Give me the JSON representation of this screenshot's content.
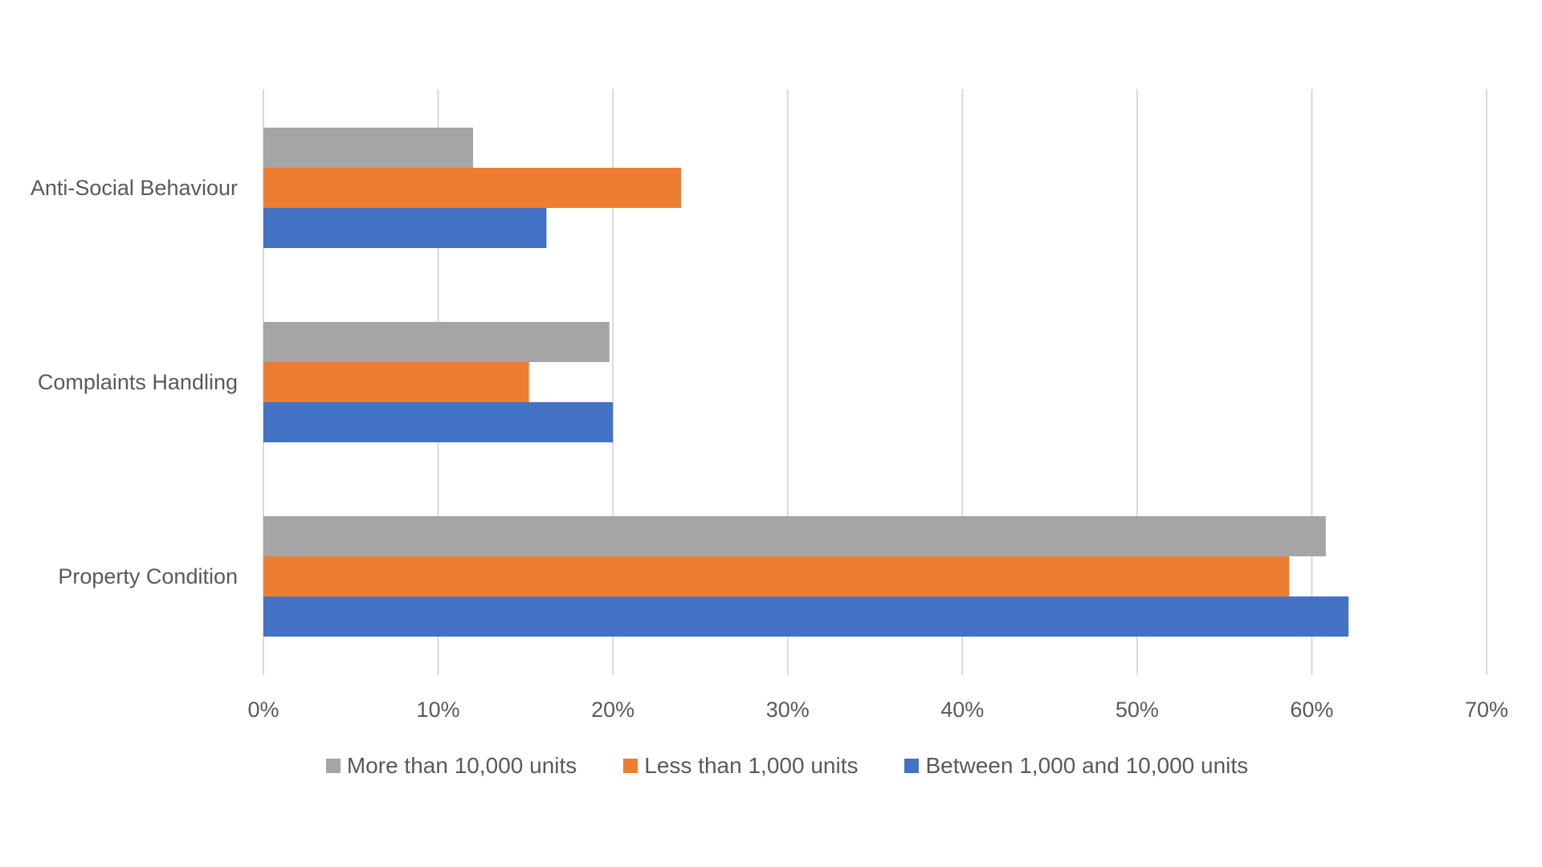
{
  "chart_data": {
    "type": "bar",
    "orientation": "horizontal",
    "title": "",
    "xlabel": "",
    "ylabel": "",
    "categories": [
      "Anti-Social Behaviour",
      "Complaints Handling",
      "Property Condition"
    ],
    "series": [
      {
        "name": "More than 10,000 units",
        "color": "#A5A5A5",
        "values": [
          12.0,
          19.8,
          60.8
        ]
      },
      {
        "name": "Less than 1,000 units",
        "color": "#ED7D31",
        "values": [
          23.9,
          15.2,
          58.7
        ]
      },
      {
        "name": "Between 1,000 and 10,000 units",
        "color": "#4472C4",
        "values": [
          16.2,
          20.0,
          62.1
        ]
      }
    ],
    "xlim": [
      0,
      70
    ],
    "x_ticks": [
      "0%",
      "10%",
      "20%",
      "30%",
      "40%",
      "50%",
      "60%",
      "70%"
    ],
    "grid": true,
    "legend_position": "bottom"
  }
}
